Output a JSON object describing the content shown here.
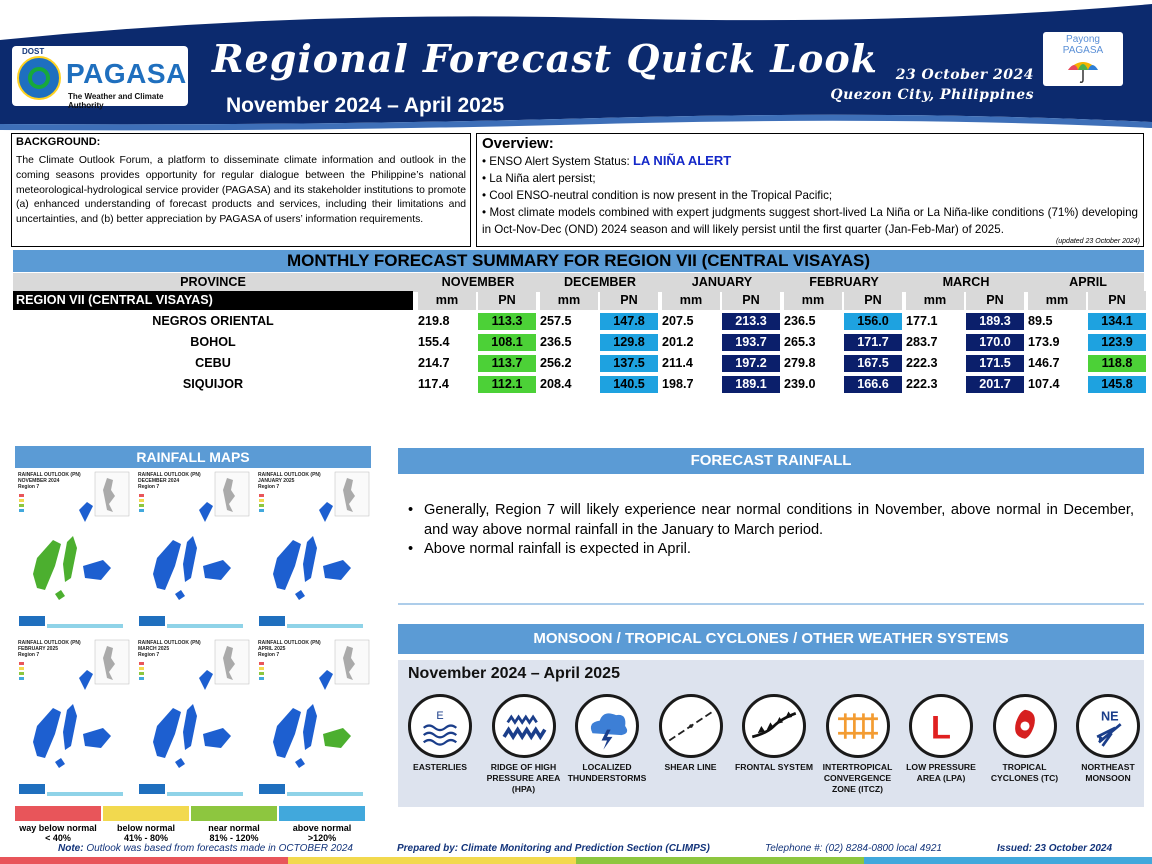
{
  "header": {
    "logo_dost": "DOST",
    "logo_name": "PAGASA",
    "logo_tagline": "The Weather and Climate Authority",
    "title": "Regional Forecast Quick Look",
    "period": "November 2024 – April 2025",
    "date": "23 October 2024",
    "place": "Quezon City, Philippines",
    "payong_line1": "Payong",
    "payong_line2": "PAGASA"
  },
  "background": {
    "heading": "BACKGROUND:",
    "text": "The Climate Outlook Forum, a platform to disseminate climate information and outlook in the coming seasons provides opportunity for regular dialogue between the Philippine’s national meteorological-hydrological service provider (PAGASA) and its stakeholder institutions to promote (a) enhanced understanding of forecast products and services, including their limitations and uncertainties, and (b) better appreciation by PAGASA of users’ information requirements."
  },
  "overview": {
    "heading": "Overview:",
    "enso_label": "• ENSO Alert System Status: ",
    "enso_status": "LA NIÑA ALERT",
    "bullets": [
      "• La Niña alert persist;",
      "• Cool ENSO-neutral condition is now present in the Tropical Pacific;",
      "• Most climate models combined with expert judgments suggest short-lived La Niña or La Niña-like conditions (71%) developing in Oct-Nov-Dec (OND) 2024 season and will likely persist until the first quarter (Jan-Feb-Mar) of 2025."
    ],
    "updated": "(updated 23 October 2024)"
  },
  "forecast_table": {
    "title": "MONTHLY FORECAST SUMMARY FOR REGION VII (CENTRAL VISAYAS)",
    "province_header": "PROVINCE",
    "region_label": "REGION VII (CENTRAL VISAYAS)",
    "months": [
      "NOVEMBER",
      "DECEMBER",
      "JANUARY",
      "FEBRUARY",
      "MARCH",
      "APRIL"
    ],
    "units": [
      "mm",
      "PN"
    ],
    "rows": [
      {
        "province": "NEGROS ORIENTAL",
        "mm": [
          "219.8",
          "257.5",
          "207.5",
          "236.5",
          "177.1",
          "89.5"
        ],
        "pn": [
          "113.3",
          "147.8",
          "213.3",
          "156.0",
          "189.3",
          "134.1"
        ]
      },
      {
        "province": "BOHOL",
        "mm": [
          "155.4",
          "236.5",
          "201.2",
          "265.3",
          "283.7",
          "173.9"
        ],
        "pn": [
          "108.1",
          "129.8",
          "193.7",
          "171.7",
          "170.0",
          "123.9"
        ]
      },
      {
        "province": "CEBU",
        "mm": [
          "214.7",
          "256.2",
          "211.4",
          "279.8",
          "222.3",
          "146.7"
        ],
        "pn": [
          "113.7",
          "137.5",
          "197.2",
          "167.5",
          "171.5",
          "118.8"
        ]
      },
      {
        "province": "SIQUIJOR",
        "mm": [
          "117.4",
          "208.4",
          "198.7",
          "239.0",
          "222.3",
          "107.4"
        ],
        "pn": [
          "112.1",
          "140.5",
          "189.1",
          "166.6",
          "201.7",
          "145.8"
        ]
      }
    ],
    "pn_colors": {
      "near_normal": "#4cd137",
      "above_normal": "#1ea2e0",
      "way_above_normal": "#0b1f6b"
    }
  },
  "rainfall_maps": {
    "heading": "RAINFALL MAPS",
    "maps": [
      {
        "title": "RAINFALL OUTLOOK (PN)",
        "month": "NOVEMBER 2024",
        "region": "Region 7"
      },
      {
        "title": "RAINFALL OUTLOOK (PN)",
        "month": "DECEMBER 2024",
        "region": "Region 7"
      },
      {
        "title": "RAINFALL OUTLOOK (PN)",
        "month": "JANUARY 2025",
        "region": "Region 7"
      },
      {
        "title": "RAINFALL OUTLOOK (PN)",
        "month": "FEBRUARY 2025",
        "region": "Region 7"
      },
      {
        "title": "RAINFALL OUTLOOK (PN)",
        "month": "MARCH 2025",
        "region": "Region 7"
      },
      {
        "title": "RAINFALL OUTLOOK (PN)",
        "month": "APRIL 2025",
        "region": "Region 7"
      }
    ],
    "legend": [
      {
        "label": "way below normal",
        "range": "< 40%",
        "color": "#e8555a"
      },
      {
        "label": "below normal",
        "range": "41% - 80%",
        "color": "#f2d94e"
      },
      {
        "label": "near normal",
        "range": "81% - 120%",
        "color": "#8dc63f"
      },
      {
        "label": "above normal",
        "range": ">120%",
        "color": "#41a8dc"
      }
    ]
  },
  "forecast_rainfall": {
    "heading": "FORECAST RAINFALL",
    "bullets": [
      "Generally, Region 7 will likely experience near normal conditions in November, above normal in December, and way above normal rainfall in the January to March period.",
      "Above normal rainfall is expected in April."
    ]
  },
  "weather_systems": {
    "heading": "MONSOON / TROPICAL CYCLONES / OTHER WEATHER SYSTEMS",
    "period": "November 2024 – April 2025",
    "items": [
      {
        "icon": "easterlies-icon",
        "label": "EASTERLIES",
        "glyph": "E"
      },
      {
        "icon": "ridge-icon",
        "label": "RIDGE OF HIGH PRESSURE AREA (HPA)",
        "glyph": ""
      },
      {
        "icon": "thunderstorm-icon",
        "label": "LOCALIZED THUNDERSTORMS",
        "glyph": ""
      },
      {
        "icon": "shear-line-icon",
        "label": "SHEAR LINE",
        "glyph": ""
      },
      {
        "icon": "frontal-system-icon",
        "label": "FRONTAL SYSTEM",
        "glyph": ""
      },
      {
        "icon": "itcz-icon",
        "label": "INTERTROPICAL CONVERGENCE ZONE (ITCZ)",
        "glyph": ""
      },
      {
        "icon": "low-pressure-icon",
        "label": "LOW PRESSURE AREA (LPA)",
        "glyph": "L"
      },
      {
        "icon": "tropical-cyclone-icon",
        "label": "TROPICAL CYCLONES (TC)",
        "glyph": ""
      },
      {
        "icon": "northeast-monsoon-icon",
        "label": "NORTHEAST MONSOON",
        "glyph": "NE"
      }
    ]
  },
  "footer": {
    "note_label": "Note:",
    "note_text": " Outlook was based from forecasts made in OCTOBER 2024",
    "prepared": "Prepared by: Climate Monitoring and Prediction Section (CLIMPS)",
    "telephone": "Telephone #: (02) 8284-0800 local 4921",
    "issued": "Issued: 23 October 2024"
  },
  "colors": {
    "header_navy": "#0c2a6e",
    "section_blue": "#5b9bd5"
  }
}
